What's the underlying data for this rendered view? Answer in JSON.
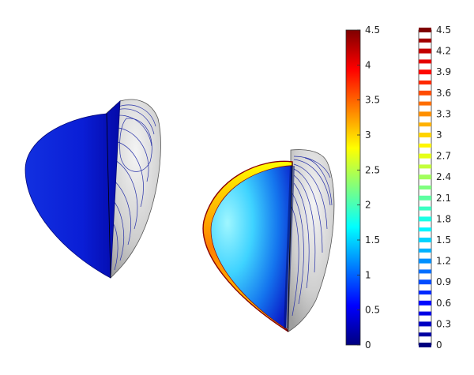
{
  "colorbar_continuous": {
    "ticks": [
      "0",
      "0.5",
      "1",
      "1.5",
      "2",
      "2.5",
      "3",
      "3.5",
      "4",
      "4.5"
    ],
    "min": 0,
    "max": 4.5
  },
  "colorbar_contour": {
    "ticks": [
      "0",
      "0.3",
      "0.6",
      "0.9",
      "1.2",
      "1.5",
      "1.8",
      "2.1",
      "2.4",
      "2.7",
      "3",
      "3.3",
      "3.6",
      "3.9",
      "4.2",
      "4.5"
    ],
    "min": 0,
    "max": 4.5
  },
  "colors": {
    "jet_stops": [
      "#00007f",
      "#0000ff",
      "#007fff",
      "#00ffff",
      "#7fff7f",
      "#ffff00",
      "#ff7f00",
      "#ff0000",
      "#7f0000"
    ],
    "surface_gray": "#d6d6d6",
    "contour_blue": "#2630a8"
  }
}
